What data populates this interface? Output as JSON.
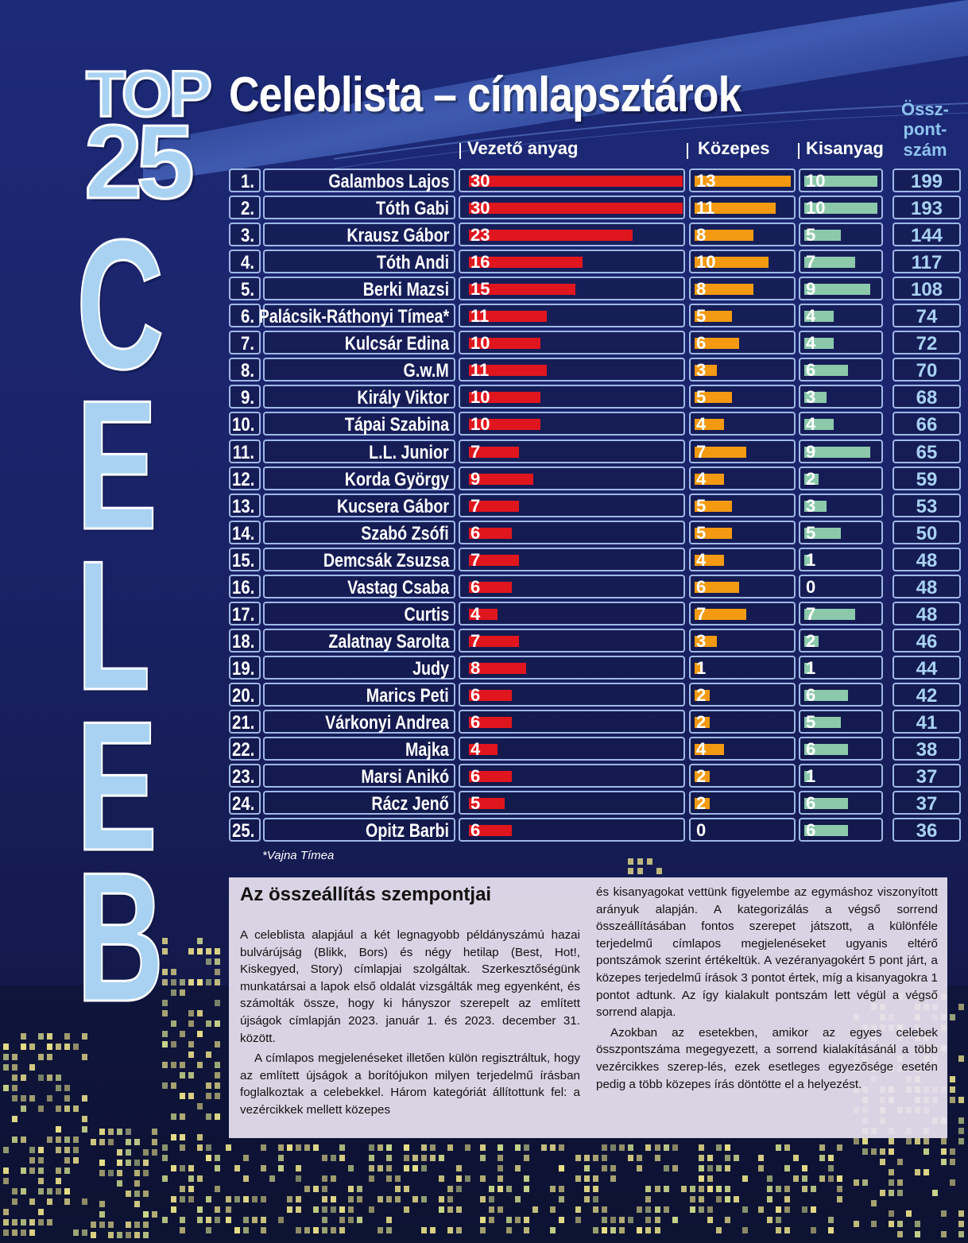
{
  "header": {
    "top_word": "TOP",
    "number_word": "25",
    "celeb_letters": [
      "C",
      "E",
      "L",
      "E",
      "B"
    ],
    "title": "Celeblista – címlapsztárok"
  },
  "columns": {
    "lead": "Vezető anyag",
    "medium": "Közepes",
    "small": "Kisanyag",
    "total_lines": [
      "Össz-",
      "pont-",
      "szám"
    ]
  },
  "colors": {
    "lead_bar": "#e0161e",
    "medium_bar": "#f39a12",
    "small_bar": "#8cc9ab",
    "cell_border": "#9fb9e6",
    "total_text": "#a9d2f2"
  },
  "chart_data": {
    "type": "bar",
    "title": "Celeblista – címlapsztárok",
    "categories": [
      "Galambos Lajos",
      "Tóth Gabi",
      "Krausz Gábor",
      "Tóth Andi",
      "Berki Mazsi",
      "Palácsik-Ráthonyi Tímea*",
      "Kulcsár Edina",
      "G.w.M",
      "Király Viktor",
      "Tápai Szabina",
      "L.L. Junior",
      "Korda György",
      "Kucsera Gábor",
      "Szabó Zsófi",
      "Demcsák Zsuzsa",
      "Vastag Csaba",
      "Curtis",
      "Zalatnay Sarolta",
      "Judy",
      "Marics Peti",
      "Várkonyi Andrea",
      "Majka",
      "Marsi Anikó",
      "Rácz Jenő",
      "Opitz Barbi"
    ],
    "ranks": [
      "1.",
      "2.",
      "3.",
      "4.",
      "5.",
      "6.",
      "7.",
      "8.",
      "9.",
      "10.",
      "11.",
      "12.",
      "13.",
      "14.",
      "15.",
      "16.",
      "17.",
      "18.",
      "19.",
      "20.",
      "21.",
      "22.",
      "23.",
      "24.",
      "25."
    ],
    "series": [
      {
        "name": "Vezető anyag",
        "values": [
          30,
          30,
          23,
          16,
          15,
          11,
          10,
          11,
          10,
          10,
          7,
          9,
          7,
          6,
          7,
          6,
          4,
          7,
          8,
          6,
          6,
          4,
          6,
          5,
          6
        ]
      },
      {
        "name": "Közepes",
        "values": [
          13,
          11,
          8,
          10,
          8,
          5,
          6,
          3,
          5,
          4,
          7,
          4,
          5,
          5,
          4,
          6,
          7,
          3,
          1,
          2,
          2,
          4,
          2,
          2,
          0
        ]
      },
      {
        "name": "Kisanyag",
        "values": [
          10,
          10,
          5,
          7,
          9,
          4,
          4,
          6,
          3,
          4,
          9,
          2,
          3,
          5,
          1,
          0,
          7,
          2,
          1,
          6,
          5,
          6,
          1,
          6,
          6
        ]
      }
    ],
    "totals": [
      199,
      193,
      144,
      117,
      108,
      74,
      72,
      70,
      68,
      66,
      65,
      59,
      53,
      50,
      48,
      48,
      48,
      46,
      44,
      42,
      41,
      38,
      37,
      37,
      36
    ],
    "xlim": [
      0,
      30
    ]
  },
  "footnote": "*Vajna Tímea",
  "method": {
    "title": "Az összeállítás szempontjai",
    "col1_p1": "A celeblista alapjául a két legnagyobb példányszámú hazai bulvárújság (Blikk, Bors) és négy hetilap (Best, Hot!, Kiskegyed, Story) címlapjai szolgáltak. Szerkesztőségünk munkatársai a lapok első oldalát vizsgálták meg egyenként, és számolták össze, hogy ki hányszor szerepelt az említett újságok címlapján 2023. január 1. és 2023. december 31. között.",
    "col1_p2": "A címlapos megjelenéseket illetően külön regisztráltuk, hogy az említett újságok a borítójukon milyen terjedelmű írásban foglalkoztak a celebekkel. Három kategóriát állítottunk fel: a vezércikkek mellett közepes",
    "col2_p1": "és kisanyagokat vettünk figyelembe az egymáshoz viszonyított arányuk alapján. A kategorizálás a végső sorrend összeállításában fontos szerepet játszott, a különféle terjedelmű címlapos megjelenéseket ugyanis eltérő pontszámok szerint értékeltük. A vezéranyagokért 5 pont járt, a közepes terjedelmű írások 3 pontot értek, míg a kisanyagokra 1 pontot adtunk. Az így kialakult pontszám lett végül a végső sorrend alapja.",
    "col2_p2": "Azokban az esetekben, amikor az egyes celebek összpontszáma megegyezett, a sorrend kialakításánál a több vezércikkes szerep-lés, ezek esetleges egyezősége esetén pedig a több közepes írás döntötte el a helyezést."
  }
}
